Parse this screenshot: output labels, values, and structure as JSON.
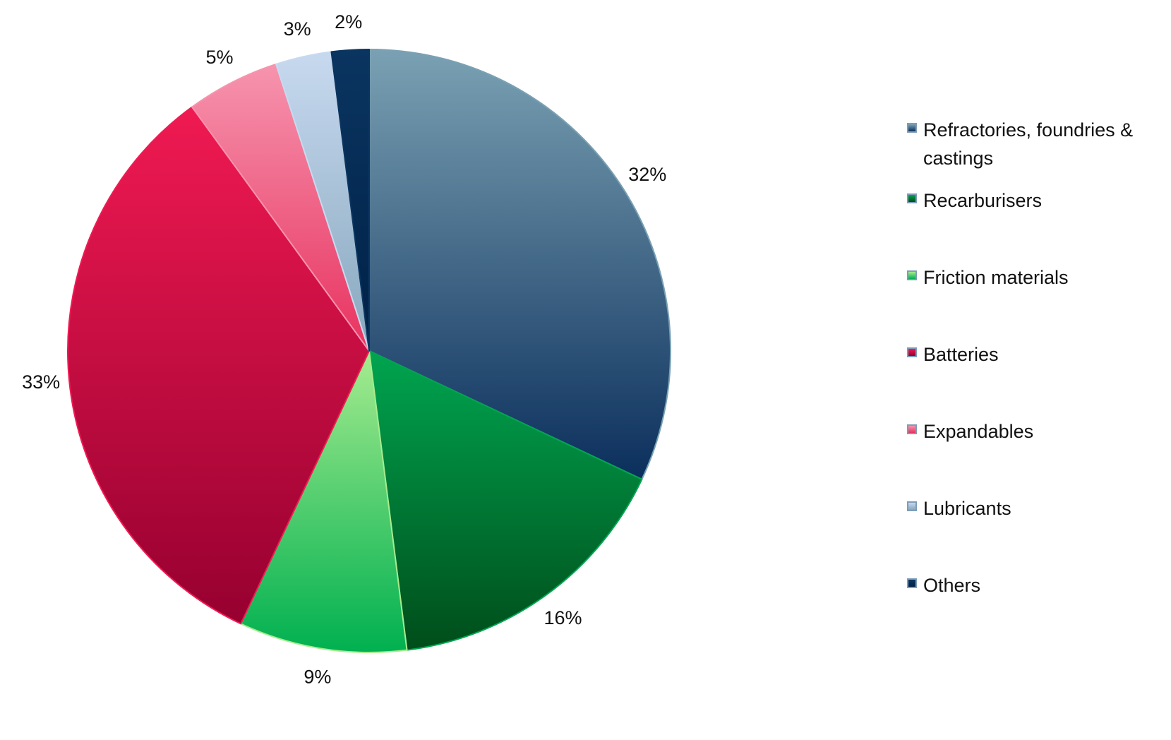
{
  "chart_data": {
    "type": "pie",
    "categories": [
      "Refractories, foundries & castings",
      "Recarburisers",
      "Friction materials",
      "Batteries",
      "Expandables",
      "Lubricants",
      "Others"
    ],
    "values": [
      32,
      16,
      9,
      33,
      5,
      3,
      2
    ],
    "data_labels": [
      "32%",
      "16%",
      "9%",
      "33%",
      "5%",
      "3%",
      "2%"
    ],
    "colors": [
      [
        "#7aa1b3",
        "#0b2f5c"
      ],
      [
        "#00a550",
        "#004d1a"
      ],
      [
        "#a6ec8f",
        "#00b050"
      ],
      [
        "#f01a52",
        "#960030"
      ],
      [
        "#f694ae",
        "#e8325f"
      ],
      [
        "#c7d9ef",
        "#87a7bd"
      ],
      [
        "#0a3560",
        "#002147"
      ]
    ],
    "start_angle_deg": 0,
    "direction": "clockwise",
    "legend_position": "right"
  }
}
